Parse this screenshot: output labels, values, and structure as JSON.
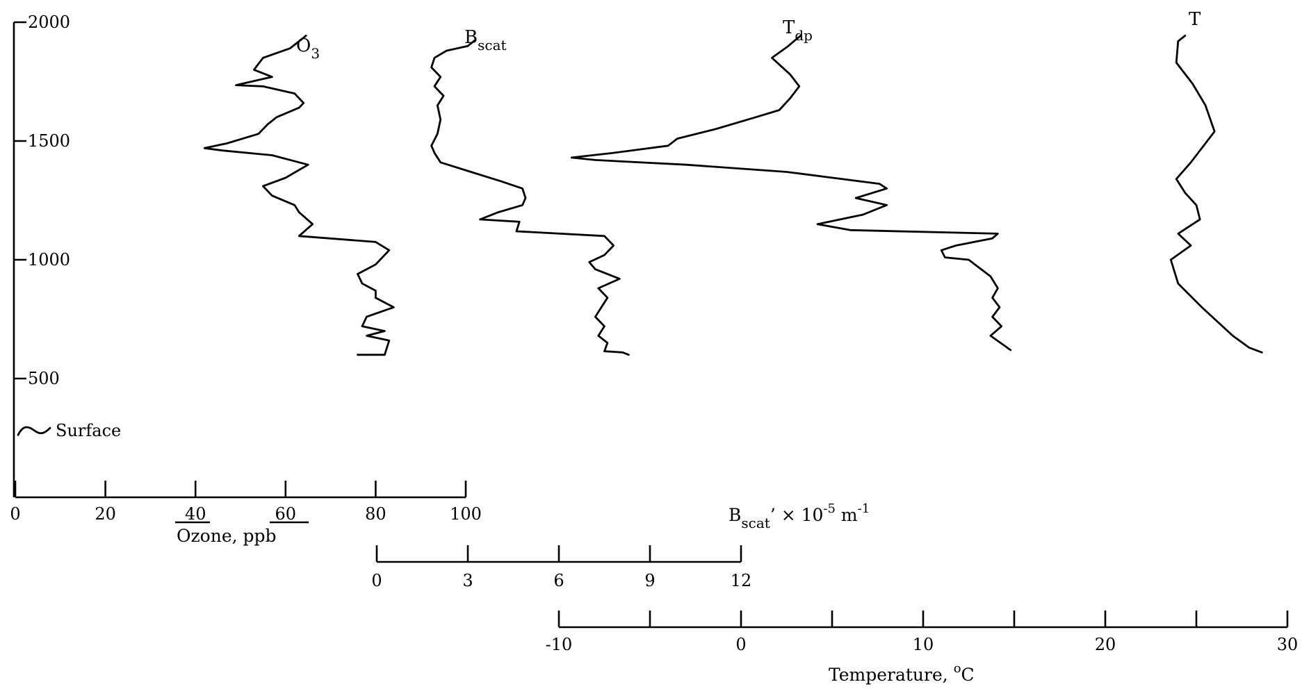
{
  "chart_data": {
    "type": "line",
    "orientation": "vertical profiles (altitude on y-axis)",
    "y_axis": {
      "ticks": [
        500,
        1000,
        1500,
        2000
      ],
      "tick_labels": [
        "500",
        "1000",
        "1500",
        "2000"
      ],
      "range": [
        0,
        2000
      ],
      "annotation": "Surface",
      "annotation_value": 280
    },
    "x_axes": [
      {
        "id": "ozone",
        "label_parts": [
          "Ozone,",
          "ppb"
        ],
        "ticks": [
          0,
          20,
          40,
          60,
          80,
          100
        ],
        "tick_labels": [
          "0",
          "20",
          "40",
          "60",
          "80",
          "100"
        ],
        "range": [
          0,
          100
        ]
      },
      {
        "id": "bscat",
        "label_main": "B",
        "label_sub": "scat",
        "label_rest": "’ × 10",
        "label_exp": "-5",
        "label_unit": " m",
        "label_unit_exp": "-1",
        "ticks": [
          0,
          3,
          6,
          9,
          12
        ],
        "tick_labels": [
          "0",
          "3",
          "6",
          "9",
          "12"
        ],
        "range": [
          0,
          12
        ]
      },
      {
        "id": "temperature",
        "label_text": "Temperature,",
        "label_deg": "o",
        "label_unit": "C",
        "ticks": [
          -10,
          -5,
          0,
          5,
          10,
          15,
          20,
          25,
          30
        ],
        "tick_labels": [
          "-10",
          "",
          "0",
          "",
          "10",
          "",
          "20",
          "",
          "30"
        ],
        "range": [
          -10,
          30
        ]
      }
    ],
    "series": [
      {
        "name_main": "O",
        "name_sub": "3",
        "axis": "ozone",
        "points": [
          [
            76,
            600
          ],
          [
            82,
            600
          ],
          [
            83,
            660
          ],
          [
            78,
            680
          ],
          [
            82,
            700
          ],
          [
            77,
            720
          ],
          [
            78,
            760
          ],
          [
            84,
            800
          ],
          [
            80,
            840
          ],
          [
            80,
            870
          ],
          [
            77,
            900
          ],
          [
            76,
            940
          ],
          [
            80,
            980
          ],
          [
            83,
            1040
          ],
          [
            80,
            1075
          ],
          [
            63,
            1100
          ],
          [
            66,
            1150
          ],
          [
            63,
            1200
          ],
          [
            62,
            1230
          ],
          [
            57,
            1270
          ],
          [
            55,
            1310
          ],
          [
            60,
            1345
          ],
          [
            65,
            1400
          ],
          [
            57,
            1440
          ],
          [
            46,
            1460
          ],
          [
            42,
            1470
          ],
          [
            47,
            1490
          ],
          [
            54,
            1530
          ],
          [
            56,
            1570
          ],
          [
            58,
            1600
          ],
          [
            63,
            1640
          ],
          [
            64,
            1660
          ],
          [
            62,
            1700
          ],
          [
            55,
            1730
          ],
          [
            49,
            1735
          ],
          [
            57,
            1770
          ],
          [
            53,
            1800
          ],
          [
            55,
            1850
          ],
          [
            61,
            1890
          ],
          [
            63,
            1920
          ]
        ]
      },
      {
        "name_main": "B",
        "name_sub": "scat",
        "axis": "bscat",
        "points": [
          [
            8.3,
            600
          ],
          [
            8.1,
            610
          ],
          [
            7.5,
            615
          ],
          [
            7.6,
            650
          ],
          [
            7.3,
            680
          ],
          [
            7.5,
            720
          ],
          [
            7.2,
            760
          ],
          [
            7.4,
            800
          ],
          [
            7.6,
            840
          ],
          [
            7.3,
            880
          ],
          [
            8.0,
            920
          ],
          [
            7.2,
            960
          ],
          [
            7.0,
            990
          ],
          [
            7.5,
            1020
          ],
          [
            7.8,
            1060
          ],
          [
            7.5,
            1100
          ],
          [
            4.6,
            1120
          ],
          [
            4.7,
            1160
          ],
          [
            3.4,
            1170
          ],
          [
            4.0,
            1200
          ],
          [
            4.8,
            1230
          ],
          [
            4.9,
            1260
          ],
          [
            4.8,
            1300
          ],
          [
            4.1,
            1330
          ],
          [
            3.1,
            1370
          ],
          [
            2.1,
            1410
          ],
          [
            1.9,
            1450
          ],
          [
            1.8,
            1480
          ],
          [
            2.0,
            1530
          ],
          [
            2.1,
            1590
          ],
          [
            2.0,
            1650
          ],
          [
            2.2,
            1690
          ],
          [
            1.9,
            1730
          ],
          [
            2.1,
            1770
          ],
          [
            1.8,
            1810
          ],
          [
            1.9,
            1850
          ],
          [
            2.3,
            1880
          ],
          [
            3.0,
            1900
          ]
        ]
      },
      {
        "name_main": "T",
        "name_sub": "dp",
        "axis": "temperature",
        "points": [
          [
            14.8,
            620
          ],
          [
            13.7,
            680
          ],
          [
            14.3,
            720
          ],
          [
            13.8,
            760
          ],
          [
            14.2,
            800
          ],
          [
            13.8,
            840
          ],
          [
            14.1,
            880
          ],
          [
            13.7,
            930
          ],
          [
            12.5,
            1000
          ],
          [
            11.2,
            1010
          ],
          [
            11.0,
            1040
          ],
          [
            11.8,
            1060
          ],
          [
            13.8,
            1090
          ],
          [
            14.1,
            1110
          ],
          [
            6.0,
            1125
          ],
          [
            4.2,
            1150
          ],
          [
            6.7,
            1190
          ],
          [
            8.0,
            1230
          ],
          [
            6.3,
            1260
          ],
          [
            8.0,
            1300
          ],
          [
            7.6,
            1320
          ],
          [
            2.5,
            1370
          ],
          [
            -3.0,
            1400
          ],
          [
            -8.0,
            1420
          ],
          [
            -9.3,
            1430
          ],
          [
            -7.0,
            1450
          ],
          [
            -4.0,
            1480
          ],
          [
            -3.5,
            1510
          ],
          [
            -1.4,
            1550
          ],
          [
            0.8,
            1600
          ],
          [
            2.1,
            1630
          ],
          [
            2.7,
            1680
          ],
          [
            3.2,
            1730
          ],
          [
            2.7,
            1780
          ],
          [
            1.7,
            1850
          ],
          [
            2.6,
            1900
          ],
          [
            2.9,
            1920
          ]
        ]
      },
      {
        "name_main": "T",
        "name_sub": "",
        "axis": "temperature",
        "points": [
          [
            28.6,
            610
          ],
          [
            27.9,
            630
          ],
          [
            27.0,
            680
          ],
          [
            25.3,
            800
          ],
          [
            24.0,
            900
          ],
          [
            23.6,
            1000
          ],
          [
            24.7,
            1060
          ],
          [
            24.0,
            1110
          ],
          [
            25.2,
            1170
          ],
          [
            25.0,
            1230
          ],
          [
            24.4,
            1280
          ],
          [
            23.9,
            1340
          ],
          [
            24.7,
            1410
          ],
          [
            26.0,
            1540
          ],
          [
            25.5,
            1650
          ],
          [
            24.8,
            1740
          ],
          [
            23.9,
            1830
          ],
          [
            24.0,
            1920
          ]
        ]
      }
    ]
  }
}
